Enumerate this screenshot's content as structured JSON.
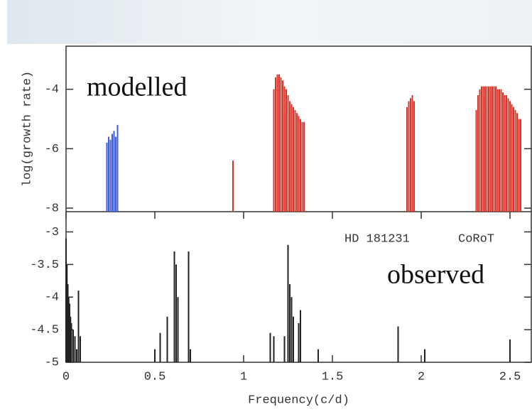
{
  "chart_data": [
    {
      "type": "bar",
      "panel_label": "modelled",
      "y_label": "log(growth rate)",
      "xlim": [
        0,
        2.62
      ],
      "ylim": [
        -8.12,
        -2.55
      ],
      "yticks": [
        -8,
        -6,
        -4
      ],
      "series": [
        {
          "color": "#3b5be0",
          "x": [
            0.23,
            0.24,
            0.25,
            0.26,
            0.27,
            0.28,
            0.29
          ],
          "values": [
            -5.8,
            -5.6,
            -5.7,
            -5.5,
            -5.4,
            -5.6,
            -5.2
          ]
        },
        {
          "color": "#d9342a",
          "x": [
            0.94,
            1.17,
            1.18,
            1.19,
            1.2,
            1.21,
            1.22,
            1.23,
            1.24,
            1.25,
            1.26,
            1.27,
            1.28,
            1.29,
            1.3,
            1.31,
            1.32,
            1.33,
            1.34,
            1.92,
            1.93,
            1.94,
            1.95,
            1.96,
            2.31,
            2.32,
            2.33,
            2.34,
            2.35,
            2.36,
            2.37,
            2.38,
            2.39,
            2.4,
            2.41,
            2.42,
            2.43,
            2.44,
            2.45,
            2.46,
            2.47,
            2.48,
            2.49,
            2.5,
            2.51,
            2.52,
            2.53,
            2.54,
            2.55,
            2.56
          ],
          "values": [
            -6.4,
            -4.0,
            -3.6,
            -3.5,
            -3.5,
            -3.6,
            -3.7,
            -3.9,
            -4.0,
            -4.2,
            -4.4,
            -4.5,
            -4.6,
            -4.7,
            -4.8,
            -4.9,
            -5.0,
            -5.1,
            -5.1,
            -4.6,
            -4.4,
            -4.3,
            -4.2,
            -4.4,
            -4.7,
            -4.2,
            -4.0,
            -3.9,
            -3.9,
            -3.9,
            -3.9,
            -3.9,
            -3.9,
            -3.9,
            -3.9,
            -3.9,
            -4.0,
            -4.0,
            -4.0,
            -4.1,
            -4.2,
            -4.2,
            -4.3,
            -4.4,
            -4.5,
            -4.6,
            -4.7,
            -4.8,
            -5.0,
            -5.0
          ]
        }
      ]
    },
    {
      "type": "bar",
      "panel_label": "observed",
      "annotations": [
        "HD 181231",
        "CoRoT"
      ],
      "x_label": "Frequency(c/d)",
      "xlim": [
        0,
        2.62
      ],
      "ylim": [
        -5,
        -2.69
      ],
      "xticks": [
        0,
        0.5,
        1,
        1.5,
        2,
        2.5
      ],
      "yticks": [
        -5,
        -4.5,
        -4,
        -3.5,
        -3
      ],
      "series": [
        {
          "color": "#222222",
          "x": [
            0.0,
            0.005,
            0.01,
            0.015,
            0.02,
            0.025,
            0.03,
            0.04,
            0.05,
            0.06,
            0.07,
            0.08,
            0.5,
            0.53,
            0.57,
            0.61,
            0.62,
            0.63,
            0.69,
            0.7,
            1.15,
            1.17,
            1.23,
            1.25,
            1.26,
            1.27,
            1.28,
            1.31,
            1.32,
            1.42,
            1.87,
            2.02,
            2.5
          ],
          "values": [
            -3.1,
            -3.5,
            -3.8,
            -4.0,
            -4.1,
            -4.3,
            -4.4,
            -4.5,
            -4.6,
            -4.8,
            -3.9,
            -4.6,
            -4.8,
            -4.55,
            -4.3,
            -3.3,
            -3.5,
            -4.0,
            -3.3,
            -4.8,
            -4.55,
            -4.6,
            -4.6,
            -3.2,
            -3.8,
            -4.0,
            -4.3,
            -4.4,
            -4.2,
            -4.8,
            -4.45,
            -4.8,
            -4.65
          ]
        }
      ]
    }
  ]
}
